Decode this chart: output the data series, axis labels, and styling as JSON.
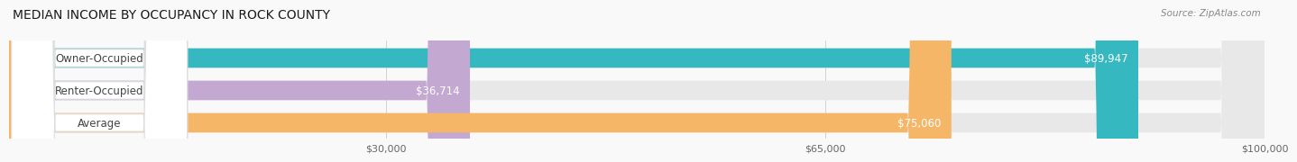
{
  "title": "MEDIAN INCOME BY OCCUPANCY IN ROCK COUNTY",
  "source": "Source: ZipAtlas.com",
  "categories": [
    "Owner-Occupied",
    "Renter-Occupied",
    "Average"
  ],
  "values": [
    89947,
    36714,
    75060
  ],
  "bar_colors": [
    "#35b8c0",
    "#c3a8d1",
    "#f5b668"
  ],
  "label_texts": [
    "$89,947",
    "$36,714",
    "$75,060"
  ],
  "x_tick_vals": [
    30000,
    65000,
    100000
  ],
  "x_tick_labels": [
    "$30,000",
    "$65,000",
    "$100,000"
  ],
  "xlim": [
    0,
    100000
  ],
  "background_color": "#f9f9f9",
  "bar_bg_color": "#e8e8e8",
  "title_fontsize": 10,
  "source_fontsize": 7.5,
  "label_fontsize": 8.5,
  "tick_fontsize": 8,
  "cat_label_fontsize": 8.5
}
